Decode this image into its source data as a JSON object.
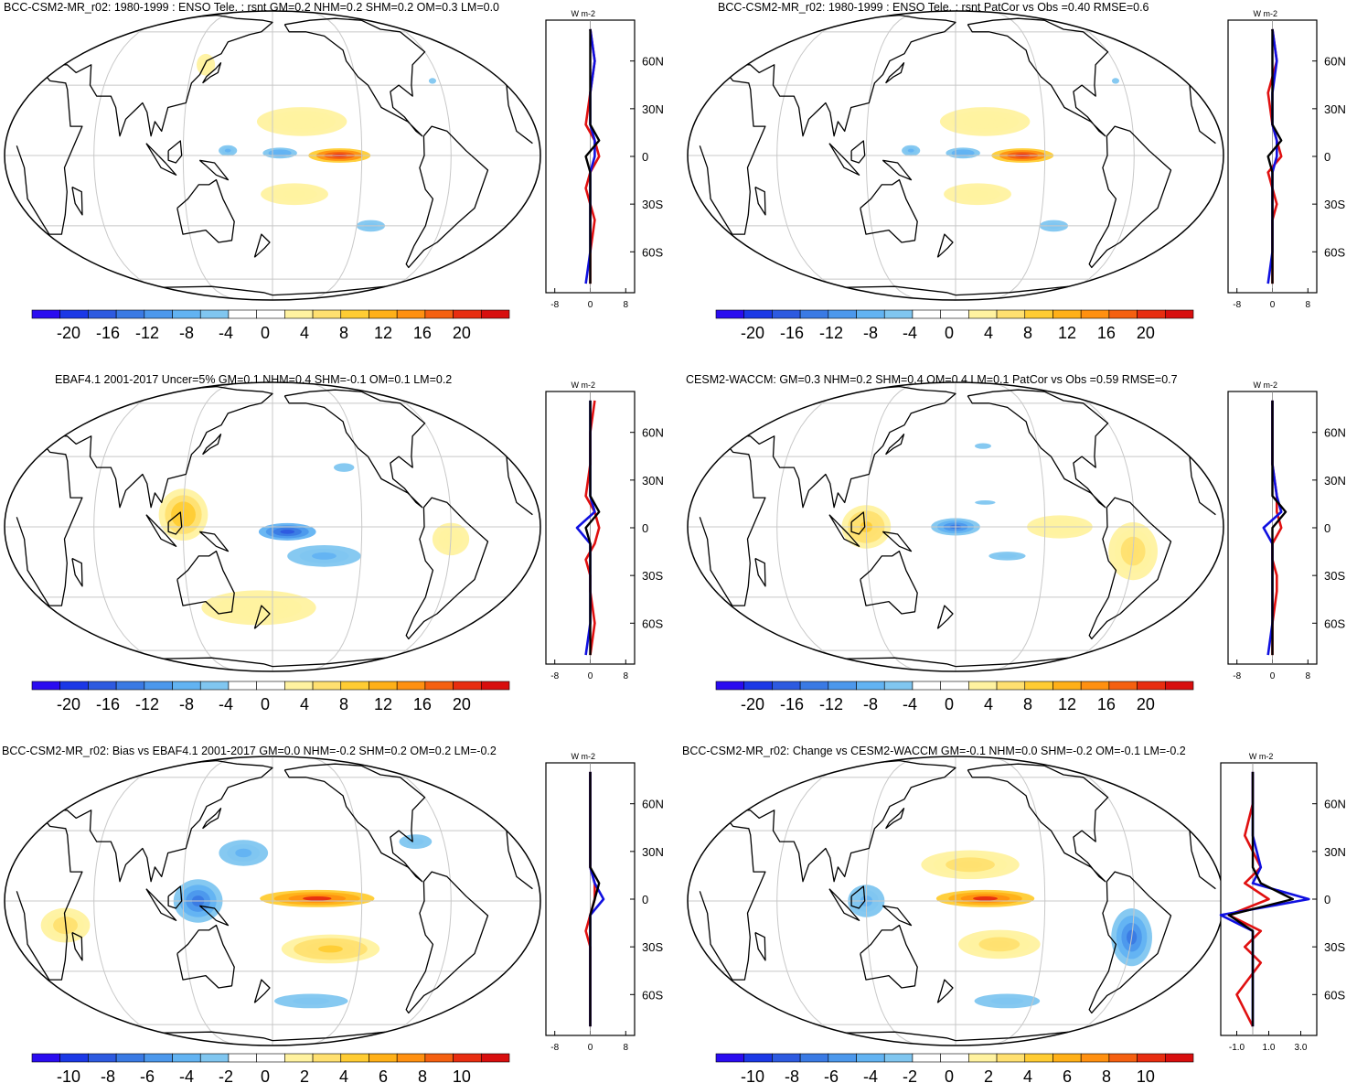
{
  "colorbar_palette": [
    "#2a0cf0",
    "#1b38e6",
    "#2d5ae0",
    "#3a7ae4",
    "#4c98ec",
    "#62b3f2",
    "#80c6f0",
    "#ffffff",
    "#ffffff",
    "#fff2a0",
    "#ffe070",
    "#ffcc33",
    "#ffb018",
    "#ff9010",
    "#f56010",
    "#e82d10",
    "#d80e0e"
  ],
  "line_colors": {
    "model": "#e01010",
    "obs": "#1010e0",
    "diff": "#000000"
  },
  "panels": [
    {
      "title": "BCC-CSM2-MR_r02: 1980-1999 : ENSO Tele. : rsnt GM=0.2 NHM=0.2 SHM=0.2 OM=0.3 LM=0.0",
      "colorbar": {
        "ticks": [
          "-20",
          "-16",
          "-12",
          "-8",
          "-4",
          "0",
          "4",
          "8",
          "12",
          "16",
          "20"
        ]
      },
      "profile": {
        "unit": "W m-2",
        "lat_labels": [
          "60N",
          "30N",
          "0",
          "30S",
          "60S"
        ],
        "x_ticks": [
          "-8",
          "0",
          "8"
        ]
      },
      "field": [
        {
          "lat": 0,
          "lon": 225,
          "v": 22,
          "w": 38,
          "h": 5
        },
        {
          "lat": 1,
          "lon": 185,
          "v": -10,
          "w": 28,
          "h": 5
        },
        {
          "lat": 2,
          "lon": 150,
          "v": -8,
          "w": 15,
          "h": 5
        },
        {
          "lat": 14,
          "lon": 200,
          "v": 4,
          "w": 55,
          "h": 10
        },
        {
          "lat": -16,
          "lon": 195,
          "v": 3,
          "w": 55,
          "h": 10
        },
        {
          "lat": -30,
          "lon": 250,
          "v": -6,
          "w": 35,
          "h": 8
        },
        {
          "lat": 32,
          "lon": 295,
          "v": -5,
          "w": 18,
          "h": 8
        },
        {
          "lat": 40,
          "lon": 130,
          "v": 3,
          "w": 15,
          "h": 10
        }
      ],
      "chart_data": {
        "type": "line",
        "series": [
          {
            "name": "model",
            "x": [
              0,
              1,
              0,
              -1,
              1,
              2,
              0,
              -1,
              0,
              1,
              0,
              0
            ],
            "y": [
              80,
              60,
              40,
              20,
              10,
              0,
              -10,
              -20,
              -30,
              -40,
              -60,
              -80
            ]
          },
          {
            "name": "obs",
            "x": [
              0,
              1,
              0,
              0,
              1,
              1,
              0,
              0,
              0,
              0,
              0,
              -1
            ],
            "y": [
              80,
              60,
              40,
              20,
              10,
              0,
              -10,
              -20,
              -30,
              -40,
              -60,
              -80
            ]
          },
          {
            "name": "diff",
            "x": [
              0,
              0,
              0,
              0,
              2,
              -1,
              0,
              0,
              0,
              0,
              0,
              0
            ],
            "y": [
              80,
              60,
              40,
              20,
              10,
              0,
              -10,
              -20,
              -30,
              -40,
              -60,
              -80
            ]
          }
        ]
      }
    },
    {
      "title": "BCC-CSM2-MR_r02: 1980-1999 : ENSO Tele. : rsnt PatCor vs Obs =0.40 RMSE=0.6",
      "colorbar": {
        "ticks": [
          "-20",
          "-16",
          "-12",
          "-8",
          "-4",
          "0",
          "4",
          "8",
          "12",
          "16",
          "20"
        ]
      },
      "profile": {
        "unit": "W m-2",
        "lat_labels": [
          "60N",
          "30N",
          "0",
          "30S",
          "60S"
        ],
        "x_ticks": [
          "-8",
          "0",
          "8"
        ]
      },
      "field": [
        {
          "lat": 0,
          "lon": 225,
          "v": 22,
          "w": 38,
          "h": 5
        },
        {
          "lat": 1,
          "lon": 185,
          "v": -10,
          "w": 28,
          "h": 5
        },
        {
          "lat": 2,
          "lon": 150,
          "v": -8,
          "w": 15,
          "h": 5
        },
        {
          "lat": 14,
          "lon": 200,
          "v": 4,
          "w": 55,
          "h": 10
        },
        {
          "lat": -16,
          "lon": 195,
          "v": 3,
          "w": 55,
          "h": 10
        },
        {
          "lat": -30,
          "lon": 250,
          "v": -6,
          "w": 35,
          "h": 8
        },
        {
          "lat": 32,
          "lon": 295,
          "v": -5,
          "w": 18,
          "h": 8
        }
      ],
      "chart_data": {
        "type": "line",
        "series": [
          {
            "name": "model",
            "x": [
              0,
              1,
              -1,
              0,
              1,
              2,
              -1,
              0,
              1,
              0,
              0,
              0
            ],
            "y": [
              80,
              60,
              40,
              20,
              10,
              0,
              -10,
              -20,
              -30,
              -40,
              -60,
              -80
            ]
          },
          {
            "name": "obs",
            "x": [
              0,
              1,
              0,
              0,
              1,
              1,
              0,
              0,
              0,
              0,
              0,
              -1
            ],
            "y": [
              80,
              60,
              40,
              20,
              10,
              0,
              -10,
              -20,
              -30,
              -40,
              -60,
              -80
            ]
          },
          {
            "name": "diff",
            "x": [
              0,
              0,
              0,
              0,
              2,
              -1,
              0,
              0,
              0,
              0,
              0,
              0
            ],
            "y": [
              80,
              60,
              40,
              20,
              10,
              0,
              -10,
              -20,
              -30,
              -40,
              -60,
              -80
            ]
          }
        ]
      }
    },
    {
      "title": "EBAF4.1 2001-2017 Uncer=5% GM=0.1 NHM=0.4 SHM=-0.1 OM=0.1 LM=0.2",
      "colorbar": {
        "ticks": [
          "-20",
          "-16",
          "-12",
          "-8",
          "-4",
          "0",
          "4",
          "8",
          "12",
          "16",
          "20"
        ]
      },
      "profile": {
        "unit": "W m-2",
        "lat_labels": [
          "60N",
          "30N",
          "0",
          "30S",
          "60S"
        ],
        "x_ticks": [
          "-8",
          "0",
          "8"
        ]
      },
      "field": [
        {
          "lat": -2,
          "lon": 190,
          "v": -18,
          "w": 35,
          "h": 6
        },
        {
          "lat": -12,
          "lon": 215,
          "v": -8,
          "w": 60,
          "h": 10
        },
        {
          "lat": 5,
          "lon": 120,
          "v": 10,
          "w": 30,
          "h": 18
        },
        {
          "lat": 25,
          "lon": 230,
          "v": -5,
          "w": 50,
          "h": 12
        },
        {
          "lat": -35,
          "lon": 170,
          "v": 4,
          "w": 70,
          "h": 12
        },
        {
          "lat": -5,
          "lon": 300,
          "v": 3,
          "w": 30,
          "h": 15
        },
        {
          "lat": 0,
          "lon": 20,
          "v": -4,
          "w": 25,
          "h": 10
        }
      ],
      "chart_data": {
        "type": "line",
        "series": [
          {
            "name": "model",
            "x": [
              1,
              0,
              0,
              -1,
              1,
              2,
              1,
              -1,
              0,
              0,
              1,
              0
            ],
            "y": [
              80,
              60,
              40,
              20,
              10,
              0,
              -10,
              -20,
              -30,
              -40,
              -60,
              -80
            ]
          },
          {
            "name": "obs",
            "x": [
              0,
              0,
              0,
              0,
              1,
              -3,
              0,
              0,
              0,
              0,
              0,
              -1
            ],
            "y": [
              80,
              60,
              40,
              20,
              10,
              0,
              -10,
              -20,
              -30,
              -40,
              -60,
              -80
            ]
          },
          {
            "name": "diff",
            "x": [
              0,
              0,
              0,
              0,
              2,
              -1,
              0,
              0,
              0,
              0,
              0,
              0
            ],
            "y": [
              80,
              60,
              40,
              20,
              10,
              0,
              -10,
              -20,
              -30,
              -40,
              -60,
              -80
            ]
          }
        ]
      }
    },
    {
      "title": "CESM2-WACCM: GM=0.3 NHM=0.2 SHM=0.4 OM=0.4 LM=0.1 PatCor vs Obs =0.59 RMSE=0.7",
      "colorbar": {
        "ticks": [
          "-20",
          "-16",
          "-12",
          "-8",
          "-4",
          "0",
          "4",
          "8",
          "12",
          "16",
          "20"
        ]
      },
      "profile": {
        "unit": "W m-2",
        "lat_labels": [
          "60N",
          "30N",
          "0",
          "30S",
          "60S"
        ],
        "x_ticks": [
          "-8",
          "0",
          "8"
        ]
      },
      "field": [
        {
          "lat": 0,
          "lon": 180,
          "v": -16,
          "w": 30,
          "h": 6
        },
        {
          "lat": 10,
          "lon": 200,
          "v": -5,
          "w": 50,
          "h": 6
        },
        {
          "lat": -12,
          "lon": 215,
          "v": -6,
          "w": 45,
          "h": 6
        },
        {
          "lat": 0,
          "lon": 120,
          "v": 8,
          "w": 30,
          "h": 15
        },
        {
          "lat": -10,
          "lon": 300,
          "v": 6,
          "w": 30,
          "h": 20
        },
        {
          "lat": 0,
          "lon": 250,
          "v": 4,
          "w": 40,
          "h": 8
        },
        {
          "lat": 35,
          "lon": 200,
          "v": -5,
          "w": 40,
          "h": 8
        }
      ],
      "chart_data": {
        "type": "line",
        "series": [
          {
            "name": "model",
            "x": [
              0,
              0,
              0,
              1,
              1,
              2,
              0,
              0,
              1,
              1,
              0,
              0
            ],
            "y": [
              80,
              60,
              40,
              20,
              10,
              0,
              -10,
              -20,
              -30,
              -40,
              -60,
              -80
            ]
          },
          {
            "name": "obs",
            "x": [
              0,
              0,
              0,
              1,
              2,
              -2,
              0,
              0,
              0,
              0,
              0,
              -1
            ],
            "y": [
              80,
              60,
              40,
              20,
              10,
              0,
              -10,
              -20,
              -30,
              -40,
              -60,
              -80
            ]
          },
          {
            "name": "diff",
            "x": [
              0,
              0,
              0,
              0,
              3,
              0,
              0,
              0,
              0,
              0,
              0,
              0
            ],
            "y": [
              80,
              60,
              40,
              20,
              10,
              0,
              -10,
              -20,
              -30,
              -40,
              -60,
              -80
            ]
          }
        ]
      }
    },
    {
      "title": "BCC-CSM2-MR_r02: Bias vs EBAF4.1 2001-2017 GM=0.0 NHM=-0.2 SHM=0.2 OM=0.2 LM=-0.2",
      "colorbar": {
        "ticks": [
          "-10",
          "-8",
          "-6",
          "-4",
          "-2",
          "0",
          "2",
          "4",
          "6",
          "8",
          "10"
        ]
      },
      "profile": {
        "unit": "W m-2",
        "lat_labels": [
          "60N",
          "30N",
          "0",
          "30S",
          "60S"
        ],
        "x_ticks": [
          "-8",
          "0",
          "8"
        ]
      },
      "field": [
        {
          "lat": 1,
          "lon": 210,
          "v": 10,
          "w": 70,
          "h": 6
        },
        {
          "lat": 0,
          "lon": 130,
          "v": -8,
          "w": 30,
          "h": 15
        },
        {
          "lat": 20,
          "lon": 160,
          "v": -4,
          "w": 40,
          "h": 12
        },
        {
          "lat": -20,
          "lon": 220,
          "v": 4,
          "w": 60,
          "h": 10
        },
        {
          "lat": -45,
          "lon": 210,
          "v": -3,
          "w": 90,
          "h": 10
        },
        {
          "lat": 25,
          "lon": 280,
          "v": -3,
          "w": 40,
          "h": 10
        },
        {
          "lat": -10,
          "lon": 40,
          "v": 3,
          "w": 30,
          "h": 12
        }
      ],
      "chart_data": {
        "type": "line",
        "series": [
          {
            "name": "model",
            "x": [
              0,
              0,
              0,
              0,
              1,
              1,
              0,
              -1,
              0,
              0,
              0,
              0
            ],
            "y": [
              80,
              60,
              40,
              20,
              10,
              0,
              -10,
              -20,
              -30,
              -40,
              -60,
              -80
            ]
          },
          {
            "name": "obs",
            "x": [
              0,
              0,
              0,
              0,
              1,
              3,
              0,
              0,
              0,
              0,
              0,
              0
            ],
            "y": [
              80,
              60,
              40,
              20,
              10,
              0,
              -10,
              -20,
              -30,
              -40,
              -60,
              -80
            ]
          },
          {
            "name": "diff",
            "x": [
              0,
              0,
              0,
              0,
              2,
              1,
              0,
              0,
              0,
              0,
              0,
              0
            ],
            "y": [
              80,
              60,
              40,
              20,
              10,
              0,
              -10,
              -20,
              -30,
              -40,
              -60,
              -80
            ]
          }
        ]
      }
    },
    {
      "title": "BCC-CSM2-MR_r02: Change vs CESM2-WACCM GM=-0.1 NHM=0.0 SHM=-0.2 OM=-0.1 LM=-0.2",
      "colorbar": {
        "ticks": [
          "-10",
          "-8",
          "-6",
          "-4",
          "-2",
          "0",
          "2",
          "4",
          "6",
          "8",
          "10"
        ]
      },
      "profile": {
        "unit": "W m-2",
        "lat_labels": [
          "60N",
          "30N",
          "0",
          "30S",
          "60S"
        ],
        "x_ticks": [
          "-1.0",
          "1.0",
          "3.0"
        ]
      },
      "field": [
        {
          "lat": 1,
          "lon": 200,
          "v": 10,
          "w": 60,
          "h": 6
        },
        {
          "lat": 15,
          "lon": 190,
          "v": 3,
          "w": 60,
          "h": 10
        },
        {
          "lat": -18,
          "lon": 210,
          "v": 3,
          "w": 50,
          "h": 10
        },
        {
          "lat": -15,
          "lon": 300,
          "v": -8,
          "w": 25,
          "h": 20
        },
        {
          "lat": 0,
          "lon": 120,
          "v": -4,
          "w": 30,
          "h": 15
        },
        {
          "lat": -45,
          "lon": 220,
          "v": -3,
          "w": 80,
          "h": 10
        },
        {
          "lat": 30,
          "lon": 260,
          "v": -2,
          "w": 50,
          "h": 10
        }
      ],
      "chart_data": {
        "type": "line",
        "series": [
          {
            "name": "model",
            "x": [
              0.0,
              0.0,
              -0.5,
              0.5,
              -0.5,
              1.0,
              -1.5,
              0.5,
              -0.5,
              0.5,
              -1.0,
              0.0
            ],
            "y": [
              80,
              60,
              40,
              20,
              10,
              0,
              -10,
              -20,
              -30,
              -40,
              -60,
              -80
            ]
          },
          {
            "name": "obs",
            "x": [
              0.0,
              0.0,
              0.0,
              0.5,
              0.0,
              3.5,
              -2.0,
              0.0,
              0.0,
              0.0,
              0.0,
              0.0
            ],
            "y": [
              80,
              60,
              40,
              20,
              10,
              0,
              -10,
              -20,
              -30,
              -40,
              -60,
              -80
            ]
          },
          {
            "name": "diff",
            "x": [
              0.0,
              0.0,
              0.0,
              0.0,
              0.5,
              2.5,
              -1.5,
              0.0,
              0.0,
              0.0,
              0.0,
              0.0
            ],
            "y": [
              80,
              60,
              40,
              20,
              10,
              0,
              -10,
              -20,
              -30,
              -40,
              -60,
              -80
            ]
          }
        ]
      }
    }
  ]
}
